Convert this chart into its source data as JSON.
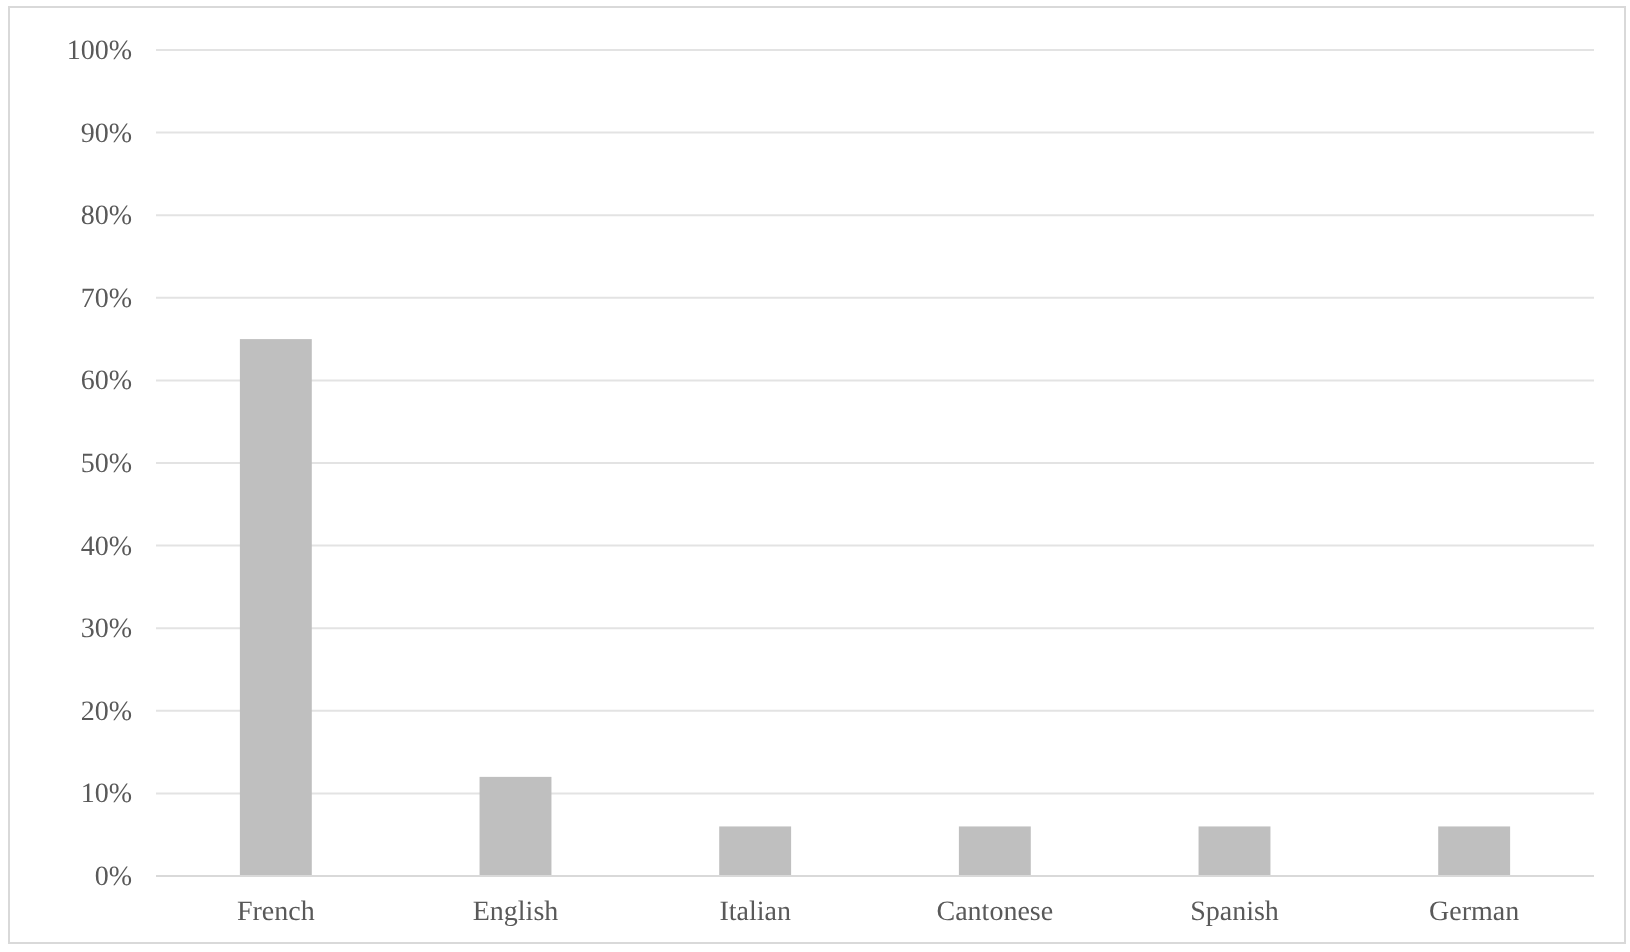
{
  "chart_data": {
    "type": "bar",
    "categories": [
      "French",
      "English",
      "Italian",
      "Cantonese",
      "Spanish",
      "German"
    ],
    "values": [
      65,
      12,
      6,
      6,
      6,
      6
    ],
    "color": "#bfbfbf",
    "ylim": [
      0,
      100
    ],
    "yticks": [
      {
        "value": 0,
        "label": "0%"
      },
      {
        "value": 10,
        "label": "10%"
      },
      {
        "value": 20,
        "label": "20%"
      },
      {
        "value": 30,
        "label": "30%"
      },
      {
        "value": 40,
        "label": "40%"
      },
      {
        "value": 50,
        "label": "50%"
      },
      {
        "value": 60,
        "label": "60%"
      },
      {
        "value": 70,
        "label": "70%"
      },
      {
        "value": 80,
        "label": "80%"
      },
      {
        "value": 90,
        "label": "90%"
      },
      {
        "value": 100,
        "label": "100%"
      }
    ],
    "grid": "y"
  }
}
